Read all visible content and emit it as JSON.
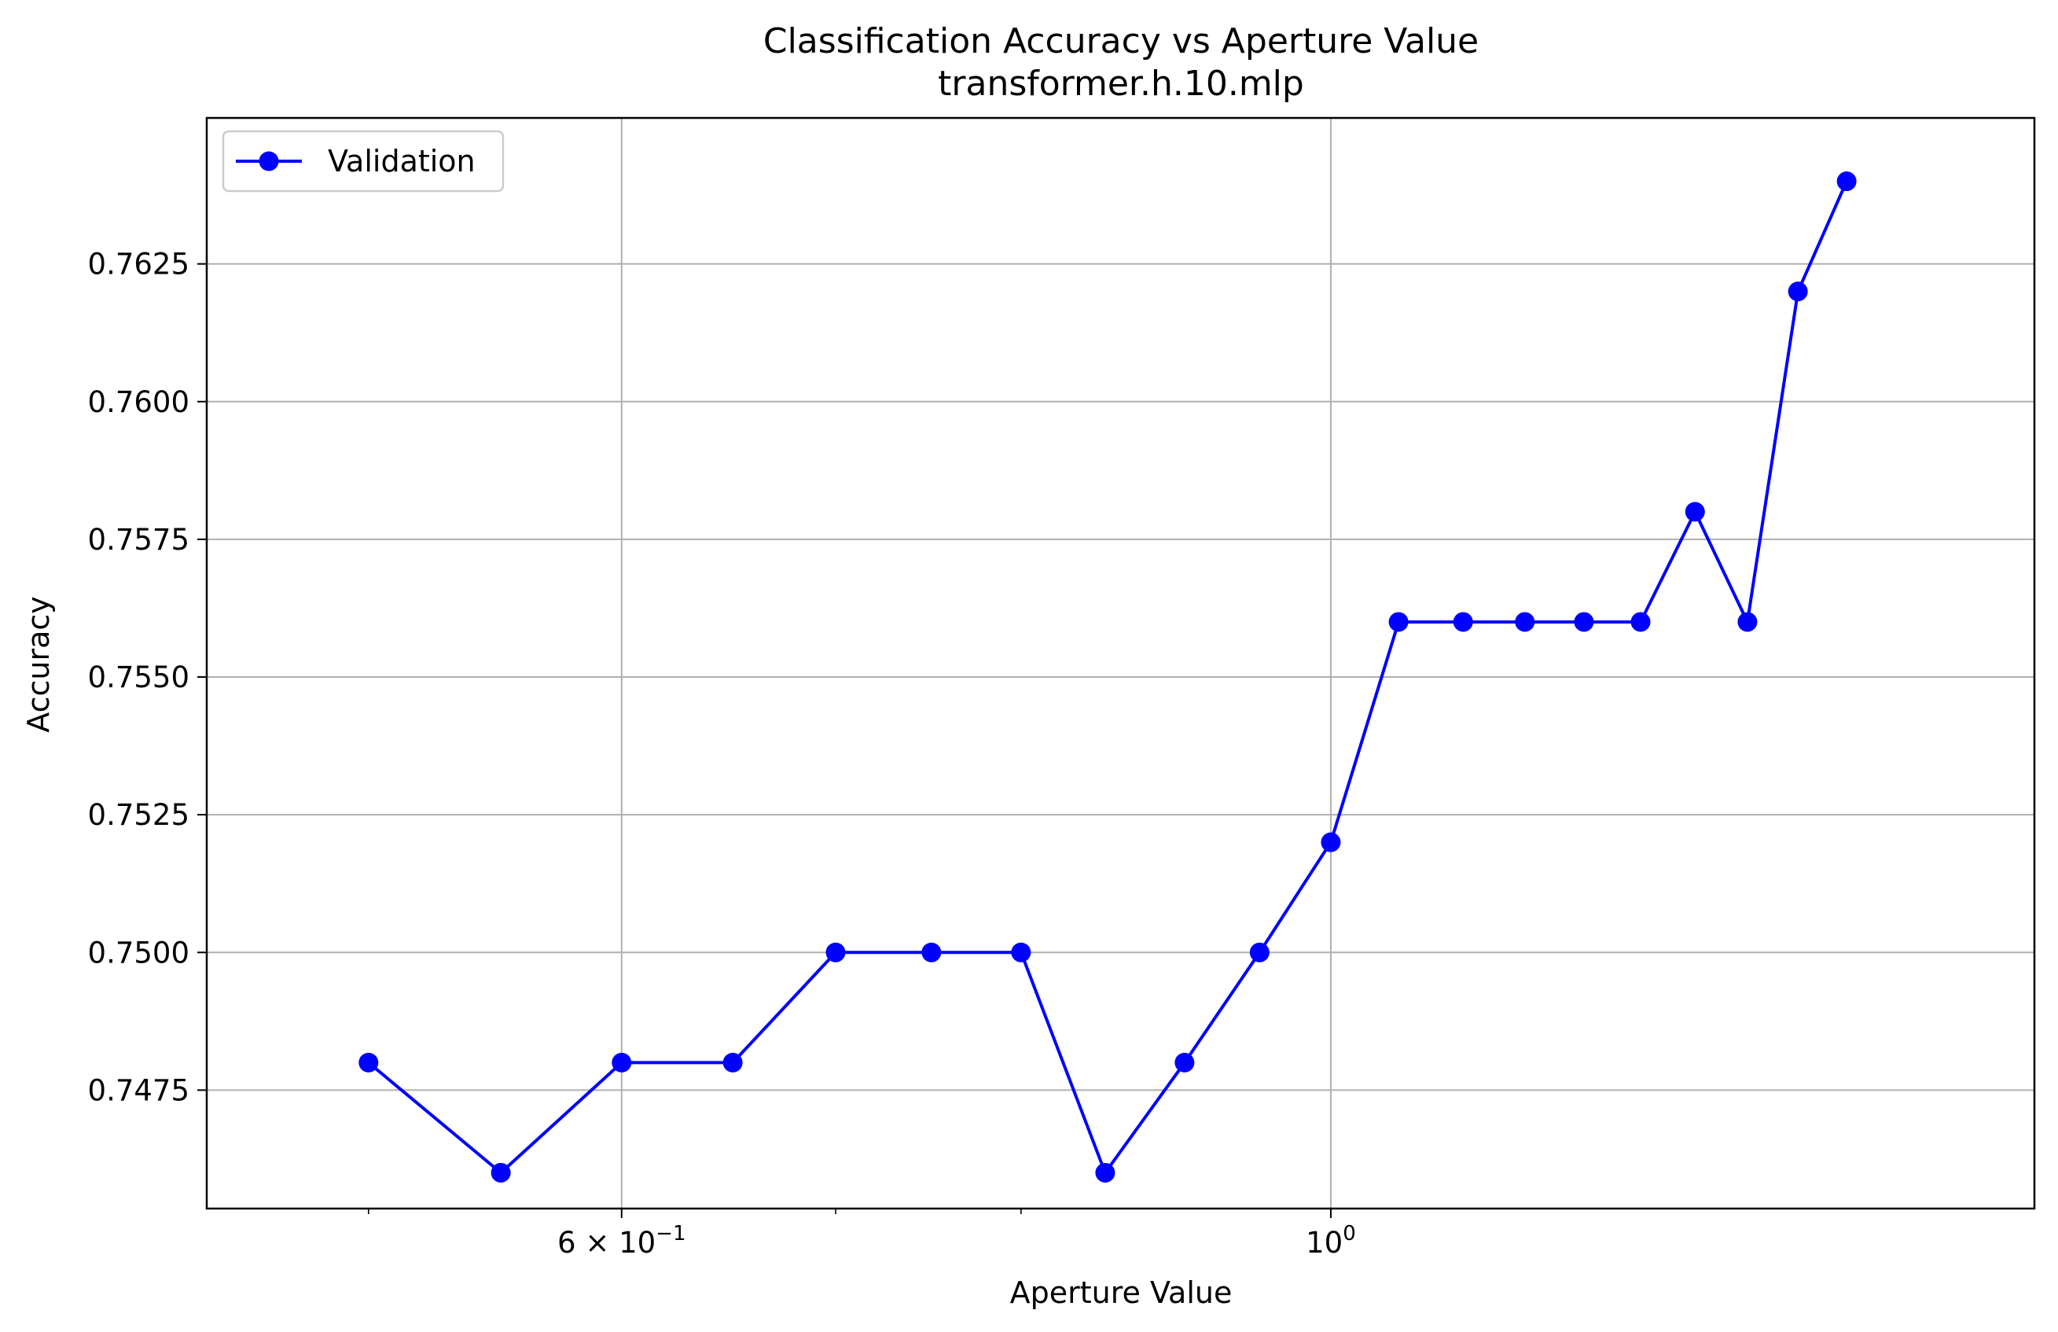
{
  "chart_data": {
    "type": "line",
    "title": "Classification Accuracy vs Aperture Value",
    "subtitle": "transformer.h.10.mlp",
    "xlabel": "Aperture Value",
    "ylabel": "Accuracy",
    "xscale": "log",
    "xlim": [
      0.445,
      1.66
    ],
    "ylim": [
      0.74535,
      0.76515
    ],
    "grid": true,
    "legend_position": "top-left",
    "x_major_ticks": [
      {
        "value": 0.6,
        "label_base": "6 × 10",
        "label_exp": "−1"
      },
      {
        "value": 1.0,
        "label_base": "10",
        "label_exp": "0"
      }
    ],
    "x_minor_ticks": [
      0.5,
      0.7,
      0.8
    ],
    "y_ticks": [
      {
        "value": 0.7475,
        "label": "0.7475"
      },
      {
        "value": 0.75,
        "label": "0.7500"
      },
      {
        "value": 0.7525,
        "label": "0.7525"
      },
      {
        "value": 0.755,
        "label": "0.7550"
      },
      {
        "value": 0.7575,
        "label": "0.7575"
      },
      {
        "value": 0.76,
        "label": "0.7600"
      },
      {
        "value": 0.7625,
        "label": "0.7625"
      }
    ],
    "series": [
      {
        "name": "Validation",
        "color": "#0000ff",
        "marker": "circle",
        "x": [
          0.5,
          0.55,
          0.6,
          0.65,
          0.7,
          0.75,
          0.8,
          0.85,
          0.9,
          0.95,
          1.0,
          1.05,
          1.1,
          1.15,
          1.2,
          1.25,
          1.3,
          1.35,
          1.4,
          1.45
        ],
        "y": [
          0.748,
          0.746,
          0.748,
          0.748,
          0.75,
          0.75,
          0.75,
          0.746,
          0.748,
          0.75,
          0.752,
          0.756,
          0.756,
          0.756,
          0.756,
          0.756,
          0.758,
          0.756,
          0.762,
          0.764
        ]
      }
    ]
  }
}
